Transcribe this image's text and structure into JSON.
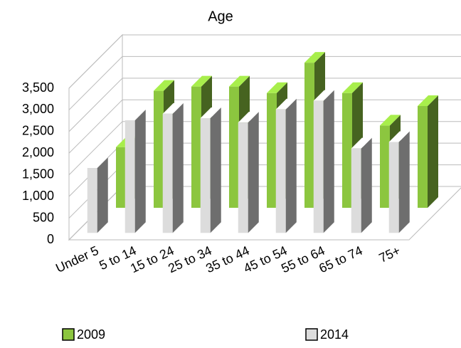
{
  "chart_data": {
    "type": "bar3d",
    "title": "Age",
    "categories": [
      "Under 5",
      "5 to 14",
      "15 to 24",
      "25 to 34",
      "35 to 44",
      "45 to 54",
      "55 to 64",
      "65 to 74",
      "75+"
    ],
    "series": [
      {
        "name": "2009",
        "color": "#8cc63f",
        "values": [
          1400,
          2700,
          2800,
          2800,
          2650,
          3350,
          2650,
          1900,
          2350
        ]
      },
      {
        "name": "2014",
        "color": "#dcdcdc",
        "values": [
          1500,
          2600,
          2750,
          2650,
          2550,
          2850,
          3050,
          1950,
          2100
        ]
      }
    ],
    "ylim": [
      0,
      3500
    ],
    "yticks": [
      0,
      500,
      {
        "value": 1000,
        "label": "1,000"
      },
      {
        "value": 1500,
        "label": "1,500"
      },
      {
        "value": 2000,
        "label": "2,000"
      },
      {
        "value": 2500,
        "label": "2,500"
      },
      {
        "value": 3000,
        "label": "3,000"
      },
      {
        "value": 3500,
        "label": "3,500"
      }
    ],
    "grid": true
  }
}
